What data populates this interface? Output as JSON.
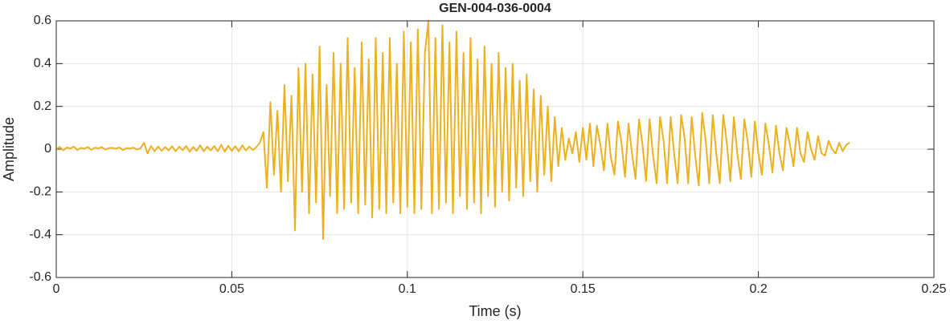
{
  "chart_data": {
    "type": "line",
    "title": "GEN-004-036-0004",
    "xlabel": "Time (s)",
    "ylabel": "Amplitude",
    "color": "#EDB120",
    "grid": true,
    "xlim": [
      0,
      0.25
    ],
    "xticks": [
      0,
      0.05,
      0.1,
      0.15,
      0.2,
      0.25
    ],
    "ylim": [
      -0.6,
      0.6
    ],
    "yticks": [
      -0.6,
      -0.4,
      -0.2,
      0,
      0.2,
      0.4,
      0.6
    ],
    "x": [
      0,
      0.001,
      0.002,
      0.003,
      0.004,
      0.005,
      0.006,
      0.007,
      0.008,
      0.009,
      0.01,
      0.011,
      0.012,
      0.013,
      0.014,
      0.015,
      0.016,
      0.017,
      0.018,
      0.019,
      0.02,
      0.021,
      0.022,
      0.023,
      0.024,
      0.025,
      0.026,
      0.027,
      0.028,
      0.029,
      0.03,
      0.031,
      0.032,
      0.033,
      0.034,
      0.035,
      0.036,
      0.037,
      0.038,
      0.039,
      0.04,
      0.041,
      0.042,
      0.043,
      0.044,
      0.045,
      0.046,
      0.047,
      0.048,
      0.049,
      0.05,
      0.051,
      0.052,
      0.053,
      0.054,
      0.055,
      0.056,
      0.057,
      0.058,
      0.059,
      0.06,
      0.061,
      0.062,
      0.063,
      0.064,
      0.065,
      0.066,
      0.067,
      0.068,
      0.069,
      0.07,
      0.071,
      0.072,
      0.073,
      0.074,
      0.075,
      0.076,
      0.077,
      0.078,
      0.079,
      0.08,
      0.081,
      0.082,
      0.083,
      0.084,
      0.085,
      0.086,
      0.087,
      0.088,
      0.089,
      0.09,
      0.091,
      0.092,
      0.093,
      0.094,
      0.095,
      0.096,
      0.097,
      0.098,
      0.099,
      0.1,
      0.101,
      0.102,
      0.103,
      0.104,
      0.105,
      0.106,
      0.107,
      0.108,
      0.109,
      0.11,
      0.111,
      0.112,
      0.113,
      0.114,
      0.115,
      0.116,
      0.117,
      0.118,
      0.119,
      0.12,
      0.121,
      0.122,
      0.123,
      0.124,
      0.125,
      0.126,
      0.127,
      0.128,
      0.129,
      0.13,
      0.131,
      0.132,
      0.133,
      0.134,
      0.135,
      0.136,
      0.137,
      0.138,
      0.139,
      0.14,
      0.141,
      0.142,
      0.143,
      0.144,
      0.145,
      0.146,
      0.147,
      0.148,
      0.149,
      0.15,
      0.151,
      0.152,
      0.153,
      0.154,
      0.155,
      0.156,
      0.157,
      0.158,
      0.159,
      0.16,
      0.161,
      0.162,
      0.163,
      0.164,
      0.165,
      0.166,
      0.167,
      0.168,
      0.169,
      0.17,
      0.171,
      0.172,
      0.173,
      0.174,
      0.175,
      0.176,
      0.177,
      0.178,
      0.179,
      0.18,
      0.181,
      0.182,
      0.183,
      0.184,
      0.185,
      0.186,
      0.187,
      0.188,
      0.189,
      0.19,
      0.191,
      0.192,
      0.193,
      0.194,
      0.195,
      0.196,
      0.197,
      0.198,
      0.199,
      0.2,
      0.201,
      0.202,
      0.203,
      0.204,
      0.205,
      0.206,
      0.207,
      0.208,
      0.209,
      0.21,
      0.211,
      0.212,
      0.213,
      0.214,
      0.215,
      0.216,
      0.217,
      0.218,
      0.219,
      0.22,
      0.221,
      0.222,
      0.223,
      0.224,
      0.225,
      0.226
    ],
    "values": [
      0,
      0.01,
      -0.005,
      0.008,
      0.003,
      0.012,
      -0.004,
      0.006,
      0.002,
      0.01,
      -0.003,
      0.007,
      0.004,
      0.009,
      -0.002,
      0.005,
      0.006,
      0.002,
      0.008,
      -0.004,
      0.005,
      0.003,
      0.007,
      -0.002,
      0.004,
      0.03,
      -0.02,
      0.015,
      -0.01,
      0.012,
      -0.008,
      0.01,
      -0.006,
      0.014,
      -0.01,
      0.012,
      -0.005,
      0.015,
      -0.012,
      0.01,
      -0.008,
      0.018,
      -0.01,
      0.012,
      -0.006,
      0.015,
      -0.01,
      0.02,
      -0.012,
      0.016,
      -0.008,
      0.014,
      -0.01,
      0.018,
      -0.006,
      0.012,
      -0.004,
      0.01,
      0.03,
      0.08,
      -0.18,
      0.22,
      -0.12,
      0.18,
      -0.2,
      0.3,
      -0.15,
      0.25,
      -0.38,
      0.38,
      -0.2,
      0.4,
      -0.3,
      0.35,
      -0.25,
      0.48,
      -0.42,
      0.3,
      -0.22,
      0.45,
      -0.3,
      0.4,
      -0.28,
      0.52,
      -0.25,
      0.38,
      -0.3,
      0.5,
      -0.26,
      0.42,
      -0.32,
      0.52,
      -0.28,
      0.45,
      -0.3,
      0.52,
      -0.25,
      0.4,
      -0.3,
      0.55,
      -0.27,
      0.5,
      -0.3,
      0.56,
      -0.28,
      0.45,
      0.6,
      -0.3,
      0.52,
      -0.28,
      0.58,
      -0.25,
      0.5,
      -0.3,
      0.55,
      -0.22,
      0.45,
      -0.28,
      0.52,
      -0.25,
      0.42,
      -0.3,
      0.48,
      -0.22,
      0.4,
      -0.27,
      0.45,
      -0.2,
      0.38,
      -0.24,
      0.4,
      -0.18,
      0.32,
      -0.22,
      0.35,
      -0.15,
      0.28,
      -0.2,
      0.25,
      -0.12,
      0.2,
      -0.15,
      0.15,
      -0.08,
      0.1,
      -0.05,
      0.05,
      -0.02,
      0.08,
      -0.06,
      0.1,
      -0.05,
      0.12,
      -0.08,
      0.11,
      0.02,
      -0.1,
      0.12,
      -0.04,
      -0.12,
      0.13,
      0.03,
      -0.13,
      0.12,
      -0.02,
      -0.14,
      0.14,
      0.02,
      -0.15,
      0.14,
      -0.03,
      -0.16,
      0.15,
      0.04,
      -0.16,
      0.15,
      -0.02,
      -0.16,
      0.16,
      0.05,
      -0.16,
      0.15,
      -0.03,
      -0.17,
      0.17,
      0.04,
      -0.16,
      0.16,
      -0.02,
      -0.16,
      0.16,
      0.03,
      -0.15,
      0.15,
      -0.02,
      -0.14,
      0.14,
      0.03,
      -0.13,
      0.13,
      -0.02,
      -0.12,
      0.12,
      0.02,
      -0.11,
      0.11,
      -0.02,
      -0.1,
      0.1,
      0.02,
      -0.08,
      0.1,
      -0.02,
      -0.06,
      0.08,
      0,
      -0.05,
      0.06,
      -0.02,
      -0.03,
      0.04,
      0,
      -0.02,
      0.03,
      -0.01,
      0.02,
      0.03
    ]
  }
}
